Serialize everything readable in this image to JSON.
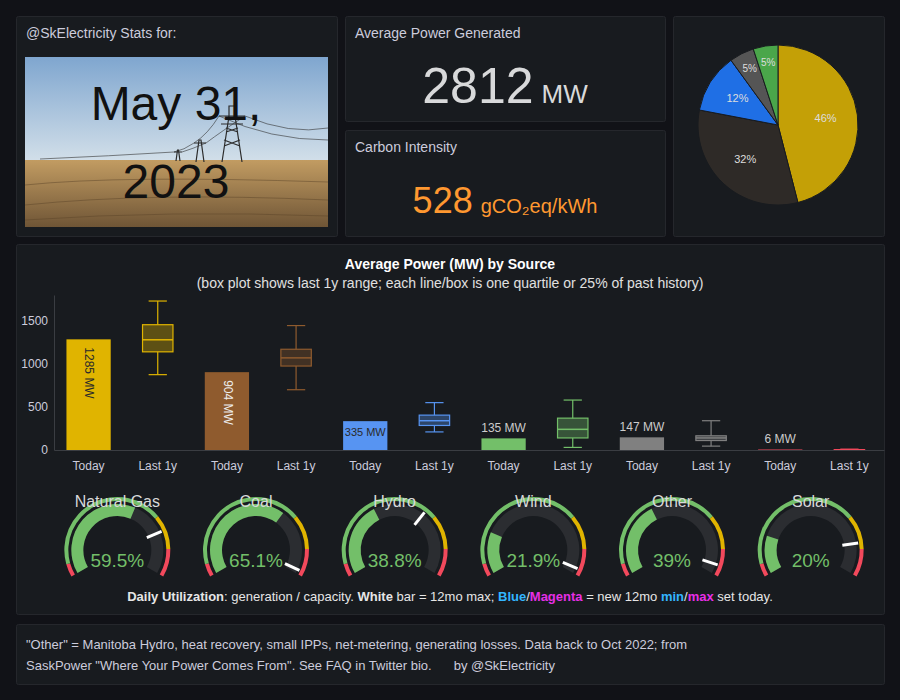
{
  "header": {
    "title": "@SkElectricity Stats for:",
    "date_lines": [
      "May 31,",
      "2023"
    ]
  },
  "stats": [
    {
      "title": "Average Power Generated",
      "value": 2812,
      "unit": "MW"
    },
    {
      "title": "Carbon Intensity",
      "value": 528,
      "unit": "gCO₂eq/kWh"
    }
  ],
  "chart_data": [
    {
      "type": "pie",
      "values": [
        46,
        32,
        12,
        5,
        5
      ],
      "value_labels": [
        "46%",
        "32%",
        "12%",
        "5%",
        "5%"
      ],
      "colors": [
        "#c4a006",
        "#2e2a27",
        "#1f6fe5",
        "#555555",
        "#4aa64a"
      ],
      "data_labels": true
    },
    {
      "type": "bar",
      "title": "Average Power (MW) by Source",
      "subtitle": "(box plot shows last 1y range; each line/box is one quartile or 25% of past history)",
      "categories": [
        "Today",
        "Last 1y",
        "Today",
        "Last 1y",
        "Today",
        "Last 1y",
        "Today",
        "Last 1y",
        "Today",
        "Last 1y",
        "Today",
        "Last 1y"
      ],
      "ylim": [
        0,
        1800
      ],
      "yticks": [
        0,
        500,
        1000,
        1500
      ],
      "grid": false,
      "data_labels": true,
      "series": [
        {
          "type": "bar",
          "values": [
            1285,
            null,
            904,
            null,
            335,
            null,
            135,
            null,
            147,
            null,
            6,
            null
          ],
          "value_labels": [
            "1285 MW",
            null,
            "904 MW",
            null,
            "335 MW",
            null,
            "135 MW",
            null,
            "147 MW",
            null,
            "6 MW",
            null
          ],
          "colors": [
            "#e0b400",
            null,
            "#8f5b2e",
            null,
            "#5794f2",
            null,
            "#73bf69",
            null,
            "#808080",
            null,
            "#f2495c",
            null
          ]
        },
        {
          "type": "box",
          "values": [
            null,
            [
              875,
              1140,
              1280,
              1455,
              1730
            ],
            null,
            [
              700,
              975,
              1070,
              1170,
              1445
            ],
            null,
            [
              210,
              285,
              340,
              405,
              550
            ],
            null,
            [
              30,
              140,
              240,
              370,
              580
            ],
            null,
            [
              45,
              110,
              140,
              165,
              340
            ],
            null,
            [
              0,
              0,
              1,
              4,
              10
            ]
          ],
          "colors": [
            null,
            "#e0b400",
            null,
            "#8f5b2e",
            null,
            "#5794f2",
            null,
            "#73bf69",
            null,
            "#808080",
            null,
            "#f2495c"
          ]
        }
      ]
    },
    {
      "type": "gauge",
      "categories": [
        "Natural Gas",
        "Coal",
        "Hydro",
        "Wind",
        "Other",
        "Solar"
      ],
      "values": [
        59.5,
        65.1,
        38.8,
        21.9,
        39,
        20
      ],
      "value_labels": [
        "59.5%",
        "65.1%",
        "38.8%",
        "21.9%",
        "39%",
        "20%"
      ],
      "max_values": [
        78,
        98,
        66,
        97,
        95,
        84
      ],
      "ylim": [
        0,
        100
      ],
      "thresholds": [
        {
          "value": 0,
          "color": "#f2495c"
        },
        {
          "value": 6,
          "color": "#73bf69"
        },
        {
          "value": 71,
          "color": "#e0b400"
        },
        {
          "value": 87,
          "color": "#f2495c"
        }
      ],
      "caption": [
        "Daily Utilization",
        ": generation / capacity. ",
        "White",
        " bar = 12mo max; ",
        "Blue",
        "/",
        "Magenta",
        " = new 12mo ",
        "min",
        "/",
        "max",
        " set today."
      ]
    }
  ],
  "footer": {
    "lines": [
      "\"Other\" = Manitoba Hydro, heat recovery, small IPPs, net-metering, generating losses. Data back to Oct 2022; from",
      "SaskPower \"Where Your Power Comes From\". See FAQ in Twitter bio."
    ],
    "credit": "by @SkElectricity"
  }
}
